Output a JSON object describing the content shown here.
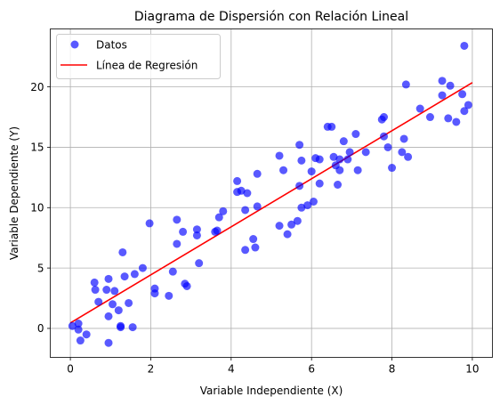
{
  "chart_data": {
    "type": "scatter",
    "title": "Diagrama de Dispersión con Relación Lineal",
    "xlabel": "Variable Independiente (X)",
    "ylabel": "Variable Dependiente (Y)",
    "xlim": [
      -0.5,
      10.5
    ],
    "ylim": [
      -2.4,
      24.8
    ],
    "xticks": [
      0,
      2,
      4,
      6,
      8,
      10
    ],
    "yticks": [
      0,
      5,
      10,
      15,
      20
    ],
    "grid": true,
    "legend_position": "top-left",
    "series": [
      {
        "name": "Datos",
        "kind": "scatter",
        "color": "#0000ff",
        "points": [
          [
            0.05,
            0.2
          ],
          [
            0.2,
            -0.1
          ],
          [
            0.2,
            0.4
          ],
          [
            0.25,
            -1.0
          ],
          [
            0.4,
            -0.5
          ],
          [
            0.6,
            3.8
          ],
          [
            0.62,
            3.2
          ],
          [
            0.7,
            2.2
          ],
          [
            0.9,
            3.2
          ],
          [
            0.95,
            4.1
          ],
          [
            0.95,
            1.0
          ],
          [
            0.95,
            -1.2
          ],
          [
            1.05,
            2.0
          ],
          [
            1.1,
            3.1
          ],
          [
            1.2,
            1.5
          ],
          [
            1.25,
            0.2
          ],
          [
            1.25,
            0.1
          ],
          [
            1.3,
            6.3
          ],
          [
            1.35,
            4.3
          ],
          [
            1.45,
            2.1
          ],
          [
            1.55,
            0.1
          ],
          [
            1.6,
            4.5
          ],
          [
            1.8,
            5.0
          ],
          [
            1.97,
            8.7
          ],
          [
            2.1,
            3.3
          ],
          [
            2.1,
            2.9
          ],
          [
            2.45,
            2.7
          ],
          [
            2.55,
            4.7
          ],
          [
            2.65,
            9.0
          ],
          [
            2.65,
            7.0
          ],
          [
            2.8,
            8.0
          ],
          [
            2.85,
            3.7
          ],
          [
            2.9,
            3.5
          ],
          [
            3.15,
            7.7
          ],
          [
            3.15,
            8.2
          ],
          [
            3.2,
            5.4
          ],
          [
            3.6,
            8.0
          ],
          [
            3.65,
            8.1
          ],
          [
            3.7,
            9.2
          ],
          [
            3.8,
            9.7
          ],
          [
            4.15,
            12.2
          ],
          [
            4.15,
            11.3
          ],
          [
            4.25,
            11.4
          ],
          [
            4.35,
            9.8
          ],
          [
            4.35,
            6.5
          ],
          [
            4.4,
            11.2
          ],
          [
            4.55,
            7.4
          ],
          [
            4.6,
            6.7
          ],
          [
            4.65,
            10.1
          ],
          [
            4.65,
            12.8
          ],
          [
            5.2,
            14.3
          ],
          [
            5.2,
            8.5
          ],
          [
            5.3,
            13.1
          ],
          [
            5.4,
            7.8
          ],
          [
            5.5,
            8.6
          ],
          [
            5.65,
            8.9
          ],
          [
            5.7,
            11.8
          ],
          [
            5.7,
            15.2
          ],
          [
            5.75,
            10.0
          ],
          [
            5.75,
            13.9
          ],
          [
            5.9,
            10.2
          ],
          [
            6.0,
            13.0
          ],
          [
            6.05,
            10.5
          ],
          [
            6.1,
            14.1
          ],
          [
            6.2,
            12.0
          ],
          [
            6.2,
            14.0
          ],
          [
            6.4,
            16.7
          ],
          [
            6.5,
            16.7
          ],
          [
            6.55,
            14.2
          ],
          [
            6.6,
            13.5
          ],
          [
            6.65,
            11.9
          ],
          [
            6.7,
            13.1
          ],
          [
            6.7,
            14.0
          ],
          [
            6.8,
            15.5
          ],
          [
            6.9,
            14.0
          ],
          [
            6.95,
            14.6
          ],
          [
            7.1,
            16.1
          ],
          [
            7.15,
            13.1
          ],
          [
            7.35,
            14.6
          ],
          [
            7.75,
            17.3
          ],
          [
            7.8,
            17.5
          ],
          [
            7.8,
            15.9
          ],
          [
            7.9,
            15.0
          ],
          [
            8.0,
            13.3
          ],
          [
            8.25,
            14.6
          ],
          [
            8.3,
            15.7
          ],
          [
            8.35,
            20.2
          ],
          [
            8.4,
            14.2
          ],
          [
            8.7,
            18.2
          ],
          [
            8.95,
            17.5
          ],
          [
            9.25,
            19.3
          ],
          [
            9.25,
            20.5
          ],
          [
            9.4,
            17.4
          ],
          [
            9.45,
            20.1
          ],
          [
            9.6,
            17.1
          ],
          [
            9.75,
            19.4
          ],
          [
            9.8,
            18.0
          ],
          [
            9.8,
            23.4
          ],
          [
            9.9,
            18.5
          ]
        ]
      },
      {
        "name": "Línea de Regresión",
        "kind": "line",
        "color": "#ff0000",
        "points": [
          [
            0,
            0.45
          ],
          [
            10,
            20.35
          ]
        ]
      }
    ]
  }
}
